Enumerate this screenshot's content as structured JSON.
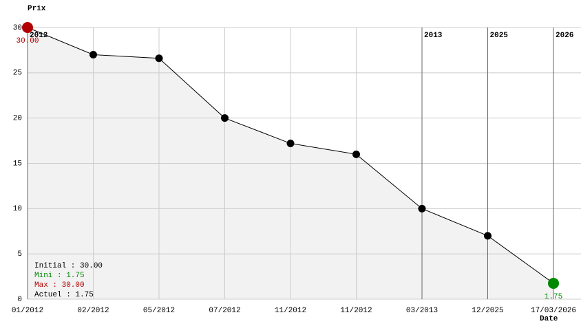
{
  "chart_data": {
    "type": "line",
    "y_label": "Prix",
    "x_label": "Date",
    "categories": [
      "01/2012",
      "02/2012",
      "05/2012",
      "07/2012",
      "11/2012",
      "11/2012",
      "03/2013",
      "12/2025",
      "17/03/2026"
    ],
    "year_labels": [
      "2012",
      null,
      null,
      null,
      null,
      null,
      "2013",
      "2025",
      "2026"
    ],
    "values": [
      30,
      27,
      26.6,
      20,
      17.2,
      16,
      10,
      7,
      1.75
    ],
    "value_labels": [
      "30.00",
      null,
      null,
      null,
      null,
      null,
      null,
      null,
      "1.75"
    ],
    "color": "#000000",
    "area_color": "#f2f2f2",
    "max_color": "#b00000",
    "min_color": "#008800",
    "ylim": [
      0,
      30
    ],
    "yticks": [
      0,
      5,
      10,
      15,
      20,
      25,
      30
    ],
    "grid": true,
    "summary": [
      {
        "text": "Initial : 30.00",
        "color": "#000000"
      },
      {
        "text": "Mini : 1.75",
        "color": "#008800"
      },
      {
        "text": "Max : 30.00",
        "color": "#b00000"
      },
      {
        "text": "Actuel : 1.75",
        "color": "#000000"
      }
    ]
  }
}
